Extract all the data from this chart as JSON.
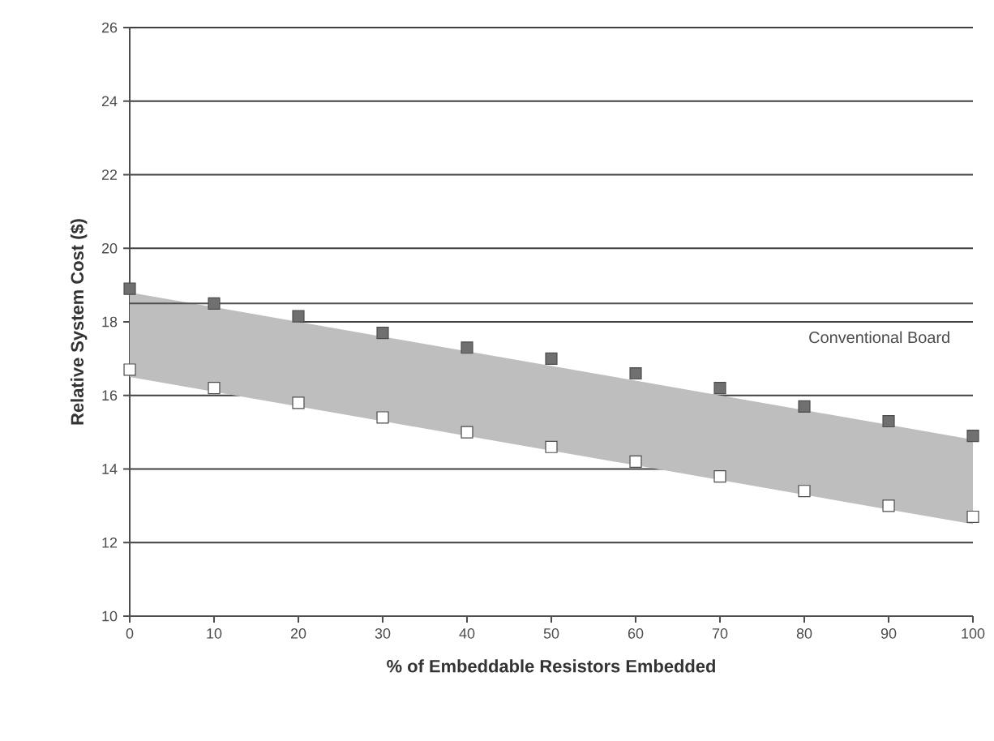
{
  "chart_data": {
    "type": "scatter",
    "xlabel": "% of Embeddable Resistors Embedded",
    "ylabel": "Relative System Cost ($)",
    "x": [
      0,
      10,
      20,
      30,
      40,
      50,
      60,
      70,
      80,
      90,
      100
    ],
    "series": [
      {
        "color": "#707070",
        "values": [
          18.9,
          18.5,
          18.15,
          17.7,
          17.3,
          17.0,
          16.6,
          16.2,
          15.7,
          15.3,
          14.9
        ],
        "lower": [
          16.5,
          16.1,
          15.7,
          15.3,
          14.9,
          14.5,
          14.1,
          13.7,
          13.3,
          12.9,
          12.5
        ],
        "upper": [
          18.8,
          18.4,
          18.0,
          17.6,
          17.2,
          16.8,
          16.4,
          16.0,
          15.6,
          15.2,
          14.8
        ]
      },
      {
        "color": "#ffffff",
        "values": [
          16.7,
          16.2,
          15.8,
          15.4,
          15.0,
          14.6,
          14.2,
          13.8,
          13.4,
          13.0,
          12.7
        ]
      }
    ],
    "ref_lines": [
      {
        "axis": "y",
        "value": 18.5,
        "label": "Conventional Board",
        "color": "#505050"
      }
    ],
    "xlim": [
      0,
      100
    ],
    "xticks": [
      0,
      10,
      20,
      30,
      40,
      50,
      60,
      70,
      80,
      90,
      100
    ],
    "ylim": [
      10,
      26
    ],
    "yticks": [
      10,
      12,
      14,
      16,
      18,
      20,
      22,
      24,
      26
    ],
    "grid": "y",
    "marker": "square"
  }
}
